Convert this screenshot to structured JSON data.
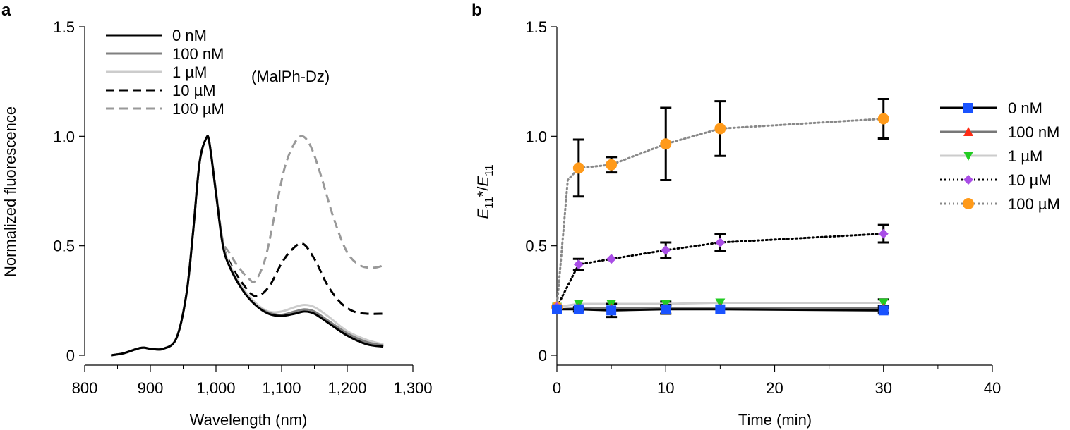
{
  "chart_data": [
    {
      "type": "line",
      "panel": "a",
      "xlabel": "Wavelength (nm)",
      "ylabel": "Normalized fluorescence",
      "xlim": [
        800,
        1300
      ],
      "ylim": [
        0,
        1.5
      ],
      "xticks": [
        800,
        900,
        1000,
        1100,
        1200,
        1300
      ],
      "xtick_labels": [
        "800",
        "900",
        "1,000",
        "1,100",
        "1,200",
        "1,300"
      ],
      "yticks": [
        0,
        0.5,
        1.0,
        1.5
      ],
      "ytick_labels": [
        "0",
        "0.5",
        "1.0",
        "1.5"
      ],
      "legend_position": "top-left",
      "legend_annotation": "(MalPh-Dz)",
      "series": [
        {
          "name": "0 nM",
          "color": "#000000",
          "dash": "solid",
          "x": [
            840,
            860,
            880,
            890,
            900,
            920,
            940,
            955,
            965,
            975,
            985,
            990,
            1000,
            1010,
            1020,
            1040,
            1060,
            1080,
            1100,
            1120,
            1135,
            1150,
            1170,
            1200,
            1230,
            1255
          ],
          "y": [
            0.0,
            0.01,
            0.03,
            0.035,
            0.03,
            0.03,
            0.08,
            0.28,
            0.56,
            0.88,
            0.99,
            0.97,
            0.74,
            0.51,
            0.41,
            0.3,
            0.23,
            0.19,
            0.18,
            0.19,
            0.2,
            0.19,
            0.15,
            0.09,
            0.05,
            0.04
          ]
        },
        {
          "name": "100 nM",
          "color": "#808080",
          "dash": "solid",
          "x": [
            840,
            860,
            880,
            890,
            900,
            920,
            940,
            955,
            965,
            975,
            985,
            990,
            1000,
            1010,
            1020,
            1040,
            1060,
            1080,
            1100,
            1120,
            1135,
            1150,
            1170,
            1200,
            1230,
            1255
          ],
          "y": [
            0.0,
            0.01,
            0.03,
            0.035,
            0.03,
            0.03,
            0.08,
            0.28,
            0.56,
            0.88,
            0.99,
            0.97,
            0.74,
            0.51,
            0.41,
            0.3,
            0.23,
            0.195,
            0.185,
            0.2,
            0.21,
            0.2,
            0.16,
            0.1,
            0.06,
            0.045
          ]
        },
        {
          "name": "1 µM",
          "color": "#cccccc",
          "dash": "solid",
          "x": [
            840,
            860,
            880,
            890,
            900,
            920,
            940,
            955,
            965,
            975,
            985,
            990,
            1000,
            1010,
            1020,
            1040,
            1060,
            1080,
            1100,
            1120,
            1135,
            1150,
            1170,
            1200,
            1230,
            1255
          ],
          "y": [
            0.0,
            0.01,
            0.03,
            0.035,
            0.03,
            0.03,
            0.08,
            0.28,
            0.56,
            0.88,
            0.99,
            0.97,
            0.74,
            0.52,
            0.42,
            0.31,
            0.24,
            0.2,
            0.2,
            0.22,
            0.23,
            0.22,
            0.18,
            0.11,
            0.07,
            0.05
          ]
        },
        {
          "name": "10 µM",
          "color": "#000000",
          "dash": "dashed",
          "x": [
            840,
            860,
            880,
            890,
            900,
            920,
            940,
            955,
            965,
            975,
            985,
            990,
            1000,
            1010,
            1020,
            1040,
            1060,
            1080,
            1100,
            1115,
            1132,
            1150,
            1170,
            1190,
            1210,
            1230,
            1255
          ],
          "y": [
            0.0,
            0.01,
            0.03,
            0.035,
            0.03,
            0.03,
            0.08,
            0.28,
            0.56,
            0.88,
            0.99,
            0.97,
            0.74,
            0.52,
            0.43,
            0.33,
            0.27,
            0.31,
            0.42,
            0.48,
            0.51,
            0.44,
            0.32,
            0.24,
            0.2,
            0.19,
            0.19
          ]
        },
        {
          "name": "100 µM",
          "color": "#999999",
          "dash": "dashed",
          "x": [
            840,
            860,
            880,
            890,
            900,
            920,
            940,
            955,
            965,
            975,
            985,
            990,
            1000,
            1010,
            1020,
            1035,
            1050,
            1060,
            1075,
            1090,
            1105,
            1120,
            1132,
            1145,
            1160,
            1180,
            1200,
            1220,
            1240,
            1255
          ],
          "y": [
            0.0,
            0.01,
            0.03,
            0.035,
            0.03,
            0.03,
            0.08,
            0.28,
            0.56,
            0.88,
            0.99,
            0.97,
            0.75,
            0.53,
            0.47,
            0.4,
            0.35,
            0.34,
            0.44,
            0.65,
            0.86,
            0.97,
            1.0,
            0.95,
            0.82,
            0.62,
            0.47,
            0.41,
            0.4,
            0.41
          ]
        }
      ]
    },
    {
      "type": "line",
      "panel": "b",
      "xlabel": "Time (min)",
      "ylabel_main": "E",
      "ylabel_sub": "11",
      "ylabel_suffix": "*/",
      "ylabel_den": "E",
      "ylabel_den_sub": "11",
      "xlim": [
        0,
        40
      ],
      "ylim": [
        0,
        1.5
      ],
      "xticks": [
        0,
        10,
        20,
        30,
        40
      ],
      "xtick_labels": [
        "0",
        "10",
        "20",
        "30",
        "40"
      ],
      "yticks": [
        0,
        0.5,
        1.0,
        1.5
      ],
      "ytick_labels": [
        "0",
        "0.5",
        "1.0",
        "1.5"
      ],
      "legend_position": "right",
      "series": [
        {
          "name": "0 nM",
          "line_color": "#000000",
          "line_style": "solid",
          "marker": "square",
          "marker_color": "#1a53ff",
          "x": [
            0,
            2,
            5,
            10,
            15,
            30
          ],
          "y": [
            0.21,
            0.21,
            0.205,
            0.21,
            0.21,
            0.205
          ],
          "err": [
            0,
            0.01,
            0.03,
            0.02,
            0.0,
            0.01
          ]
        },
        {
          "name": "100 nM",
          "line_color": "#777777",
          "line_style": "solid",
          "marker": "triangle-up",
          "marker_color": "#ff2b14",
          "x": [
            0,
            2,
            5,
            10,
            15,
            30
          ],
          "y": [
            0.21,
            0.215,
            0.215,
            0.215,
            0.215,
            0.215
          ],
          "err": [
            0,
            0,
            0,
            0,
            0,
            0
          ]
        },
        {
          "name": "1 µM",
          "line_color": "#cccccc",
          "line_style": "solid",
          "marker": "triangle-down",
          "marker_color": "#22cc22",
          "x": [
            0,
            2,
            5,
            10,
            15,
            30
          ],
          "y": [
            0.22,
            0.235,
            0.235,
            0.235,
            0.24,
            0.24
          ],
          "err": [
            0,
            0,
            0,
            0.01,
            0,
            0.015
          ]
        },
        {
          "name": "10 µM",
          "line_color": "#000000",
          "line_style": "dotted",
          "marker": "diamond",
          "marker_color": "#a94ee6",
          "x": [
            0,
            2,
            5,
            10,
            15,
            30
          ],
          "y": [
            0.22,
            0.415,
            0.44,
            0.48,
            0.515,
            0.555
          ],
          "err": [
            0,
            0.025,
            0.0,
            0.035,
            0.04,
            0.04
          ]
        },
        {
          "name": "100 µM",
          "line_color": "#888888",
          "line_style": "dotted",
          "marker": "circle",
          "marker_color": "#ff9a1a",
          "x": [
            0,
            1,
            2,
            5,
            10,
            15,
            30
          ],
          "y": [
            0.22,
            0.8,
            0.855,
            0.87,
            0.965,
            1.035,
            1.08
          ],
          "err": [
            0,
            null,
            0.13,
            0.035,
            0.165,
            0.125,
            0.09
          ]
        }
      ]
    }
  ]
}
